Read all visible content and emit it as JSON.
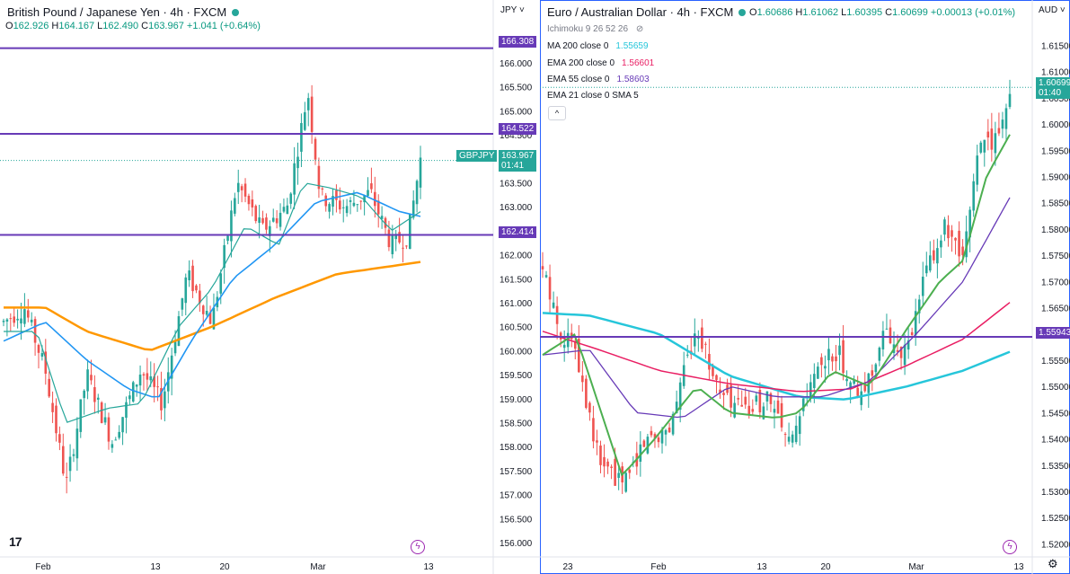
{
  "left": {
    "symbol": "British Pound / Japanese Yen · 4h · FXCM",
    "ohlc": {
      "o_label": "O",
      "o": "162.926",
      "h_label": "H",
      "h": "164.167",
      "l_label": "L",
      "l": "162.490",
      "c_label": "C",
      "c": "163.967",
      "chg": "+1.041 (+0.64%)"
    },
    "currency": "JPY",
    "price_ticks": [
      "166.500",
      "166.000",
      "165.500",
      "165.000",
      "164.500",
      "164.000",
      "163.500",
      "163.000",
      "162.500",
      "162.000",
      "161.500",
      "161.000",
      "160.500",
      "160.000",
      "159.500",
      "159.000",
      "158.500",
      "158.000",
      "157.500",
      "157.000",
      "156.500",
      "156.000"
    ],
    "time_ticks": [
      "Feb",
      "13",
      "20",
      "Mar",
      "13"
    ],
    "level_labels": [
      "166.308",
      "164.522",
      "162.414"
    ],
    "current_price_label": "163.967",
    "countdown": "01:41",
    "symbol_tag": "GBPJPY",
    "logo_text": "17",
    "colors": {
      "up": "#26a69a",
      "down": "#ef5350",
      "hline": "#673ab7",
      "ma_orange": "#ff9800",
      "ma_blue": "#2196f3",
      "ma_teal": "#26a69a"
    }
  },
  "right": {
    "symbol": "Euro / Australian Dollar · 4h · FXCM",
    "ohlc": {
      "o_label": "O",
      "o": "1.60686",
      "h_label": "H",
      "h": "1.61062",
      "l_label": "L",
      "l": "1.60395",
      "c_label": "C",
      "c": "1.60699",
      "chg": "+0.00013 (+0.01%)"
    },
    "currency": "AUD",
    "indicators": [
      {
        "name": "Ichimoku 9 26 52 26",
        "value": "",
        "color": "#787b86"
      },
      {
        "name": "MA 200 close 0",
        "value": "1.55659",
        "color": "#26c6da"
      },
      {
        "name": "EMA 200 close 0",
        "value": "1.56601",
        "color": "#e91e63"
      },
      {
        "name": "EMA 55 close 0",
        "value": "1.58603",
        "color": "#673ab7"
      },
      {
        "name": "EMA 21 close 0 SMA 5",
        "value": "",
        "color": "#131722"
      }
    ],
    "price_ticks": [
      "1.61500",
      "1.61000",
      "1.60500",
      "1.60000",
      "1.59500",
      "1.59000",
      "1.58500",
      "1.58000",
      "1.57500",
      "1.57000",
      "1.56500",
      "1.56000",
      "1.55500",
      "1.55000",
      "1.54500",
      "1.54000",
      "1.53500",
      "1.53000",
      "1.52500",
      "1.52000"
    ],
    "time_ticks": [
      "23",
      "Feb",
      "13",
      "20",
      "Mar",
      "13"
    ],
    "level_label": "1.55943",
    "current_price_label": "1.60699",
    "countdown": "01:40",
    "colors": {
      "up": "#26a69a",
      "down": "#ef5350",
      "hline": "#673ab7",
      "ema21": "#4caf50",
      "ema55": "#673ab7",
      "ema200": "#e91e63",
      "ma200": "#26c6da"
    }
  }
}
